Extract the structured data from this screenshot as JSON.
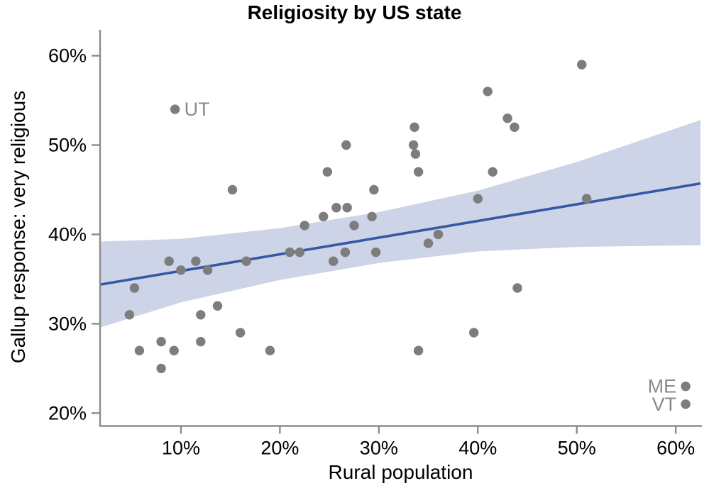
{
  "chart": {
    "title": "Religiosity by US state",
    "x_axis_label": "Rural population",
    "y_axis_label": "Gallup response: very religious"
  },
  "chart_data": {
    "type": "scatter",
    "title": "Religiosity by US state",
    "xlabel": "Rural population",
    "ylabel": "Gallup response: very religious",
    "xlim": [
      1.9,
      62.5
    ],
    "ylim": [
      18.6,
      62.9
    ],
    "grid": false,
    "legend": null,
    "x_ticks": [
      {
        "value": 10,
        "label": "10%"
      },
      {
        "value": 20,
        "label": "20%"
      },
      {
        "value": 30,
        "label": "30%"
      },
      {
        "value": 40,
        "label": "40%"
      },
      {
        "value": 50,
        "label": "50%"
      },
      {
        "value": 60,
        "label": "60%"
      }
    ],
    "y_ticks": [
      {
        "value": 20,
        "label": "20%"
      },
      {
        "value": 30,
        "label": "30%"
      },
      {
        "value": 40,
        "label": "40%"
      },
      {
        "value": 50,
        "label": "50%"
      },
      {
        "value": 60,
        "label": "60%"
      }
    ],
    "points": [
      [
        4.8,
        31
      ],
      [
        5.3,
        34
      ],
      [
        5.8,
        27
      ],
      [
        8,
        28
      ],
      [
        8,
        25
      ],
      [
        8.8,
        37
      ],
      [
        9.3,
        27
      ],
      [
        9.4,
        54
      ],
      [
        10,
        36
      ],
      [
        11.5,
        37
      ],
      [
        12,
        31
      ],
      [
        12,
        28
      ],
      [
        12.7,
        36
      ],
      [
        13.7,
        32
      ],
      [
        15.2,
        45
      ],
      [
        16,
        29
      ],
      [
        16.6,
        37
      ],
      [
        19,
        27
      ],
      [
        21,
        38
      ],
      [
        22,
        38
      ],
      [
        22.5,
        41
      ],
      [
        24.4,
        42
      ],
      [
        24.8,
        47
      ],
      [
        25.4,
        37
      ],
      [
        25.7,
        43
      ],
      [
        26.6,
        38
      ],
      [
        26.7,
        50
      ],
      [
        26.8,
        43
      ],
      [
        27.5,
        41
      ],
      [
        29.3,
        42
      ],
      [
        29.5,
        45
      ],
      [
        29.7,
        38
      ],
      [
        33.5,
        50
      ],
      [
        33.6,
        52
      ],
      [
        33.7,
        49
      ],
      [
        34,
        47
      ],
      [
        34,
        27
      ],
      [
        35,
        39
      ],
      [
        36,
        40
      ],
      [
        39.6,
        29
      ],
      [
        40,
        44
      ],
      [
        41,
        56
      ],
      [
        41.5,
        47
      ],
      [
        43,
        53
      ],
      [
        43.7,
        52
      ],
      [
        44,
        34
      ],
      [
        50.5,
        59
      ],
      [
        51,
        44
      ],
      [
        61,
        23
      ],
      [
        61,
        21
      ]
    ],
    "labeled_points": [
      {
        "label": "UT",
        "x": 9.4,
        "y": 54,
        "label_side": "right"
      },
      {
        "label": "ME",
        "x": 61,
        "y": 23,
        "label_side": "left"
      },
      {
        "label": "VT",
        "x": 61,
        "y": 21,
        "label_side": "left"
      }
    ],
    "regression_line": {
      "x_start": 1.9,
      "y_start": 34.4,
      "x_end": 62.5,
      "y_end": 45.7
    },
    "confidence_band": [
      {
        "x": 1.9,
        "upper": 39.2,
        "lower": 29.6
      },
      {
        "x": 10,
        "upper": 39.5,
        "lower": 32.4
      },
      {
        "x": 20,
        "upper": 40.7,
        "lower": 34.9
      },
      {
        "x": 30,
        "upper": 42.5,
        "lower": 36.8
      },
      {
        "x": 40,
        "upper": 44.9,
        "lower": 38.1
      },
      {
        "x": 50,
        "upper": 48.1,
        "lower": 38.6
      },
      {
        "x": 62.5,
        "upper": 52.8,
        "lower": 38.8
      }
    ],
    "colors": {
      "point": "#7d7d7d",
      "regression_line": "#3458a4",
      "confidence_band": "#cdd4e7",
      "axis": "#8c8c8c",
      "state_label": "#8a8a8a",
      "text": "#000000"
    }
  }
}
